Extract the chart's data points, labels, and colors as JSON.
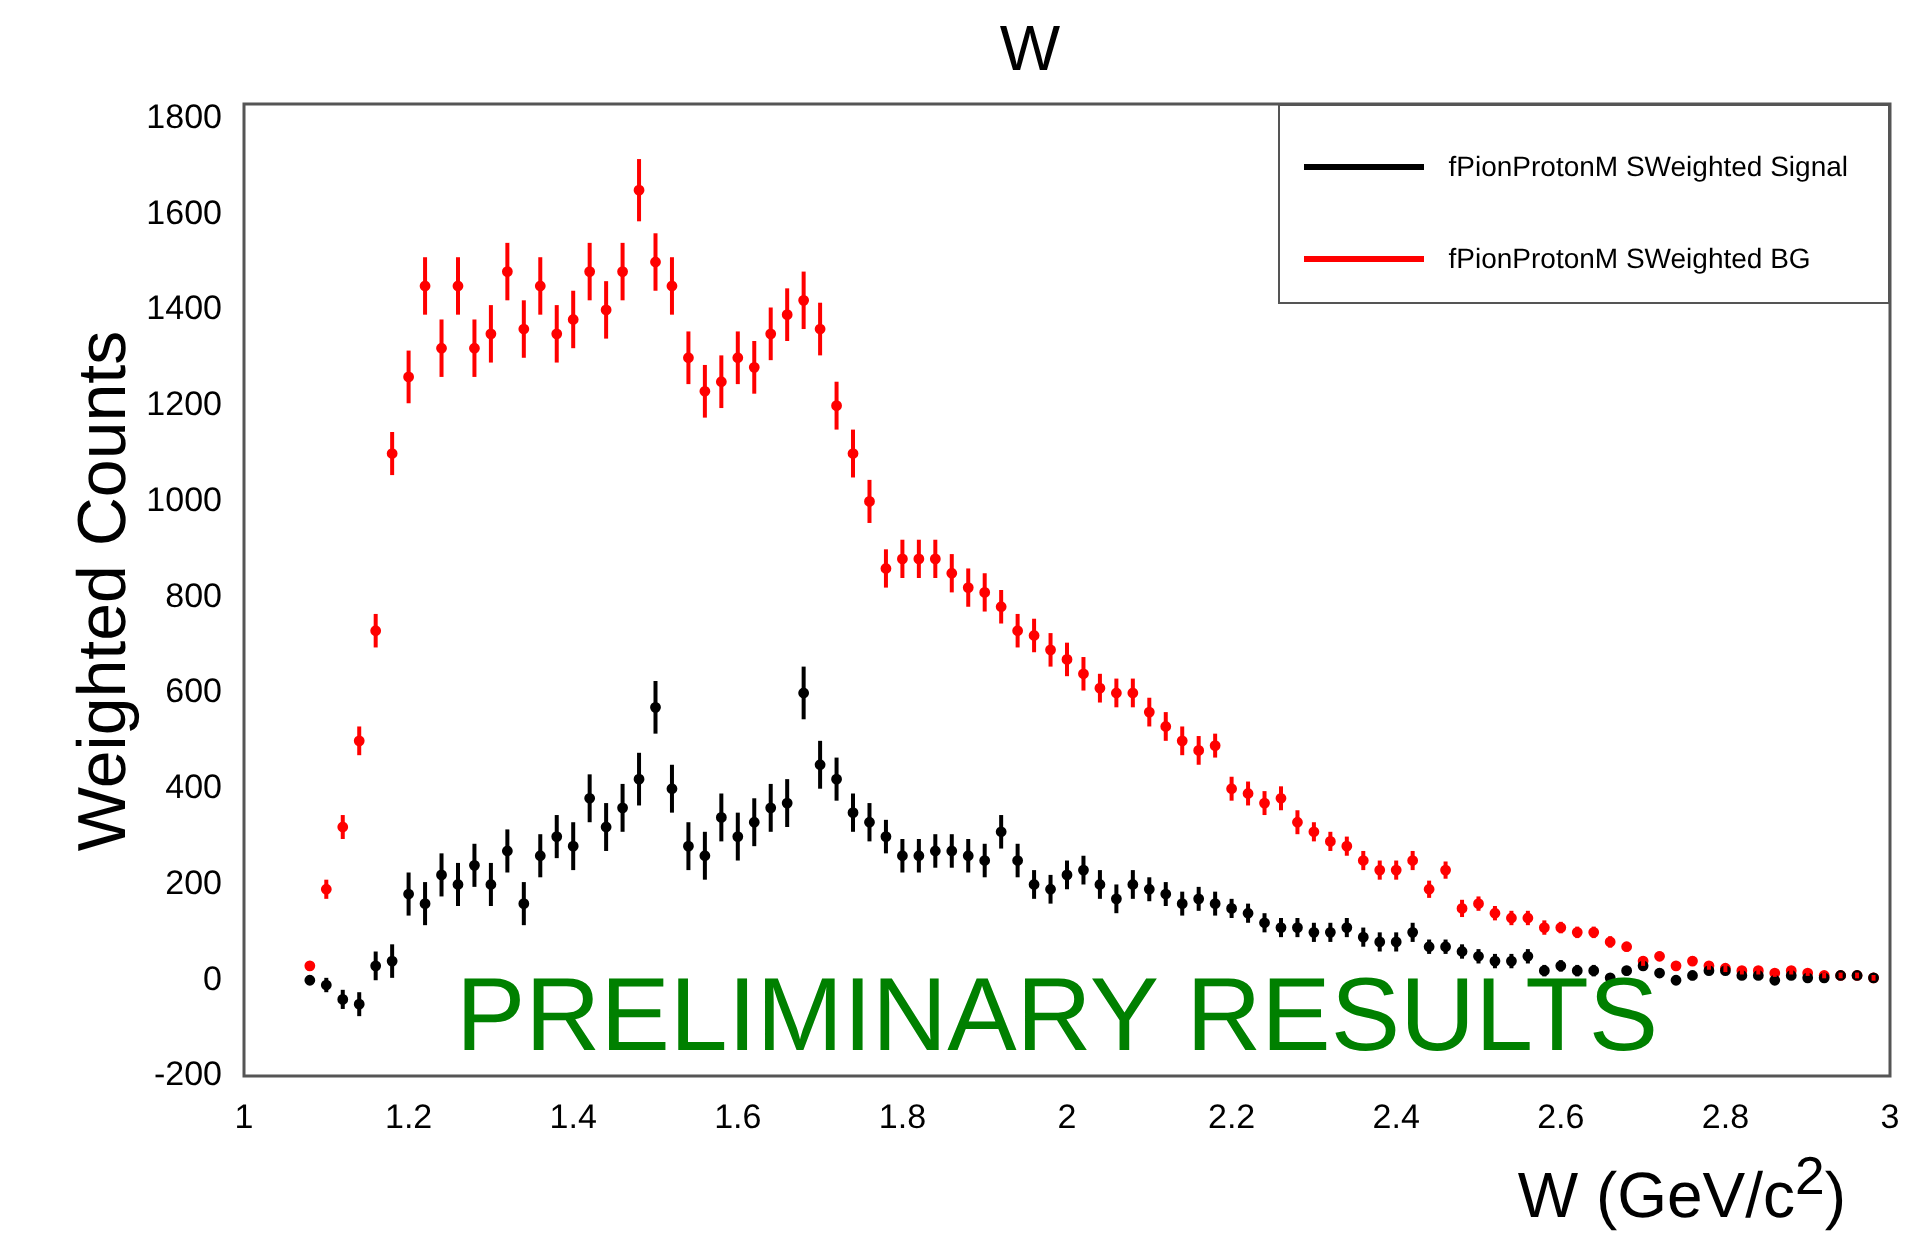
{
  "chart_data": {
    "type": "scatter",
    "title": "W",
    "xlabel": "W (GeV/c$^{2}$)",
    "ylabel": "Weighted Counts",
    "x": [
      1.08,
      1.1,
      1.12,
      1.14,
      1.16,
      1.18,
      1.2,
      1.22,
      1.24,
      1.26,
      1.28,
      1.3,
      1.32,
      1.34,
      1.36,
      1.38,
      1.4,
      1.42,
      1.44,
      1.46,
      1.48,
      1.5,
      1.52,
      1.54,
      1.56,
      1.58,
      1.6,
      1.62,
      1.64,
      1.66,
      1.68,
      1.7,
      1.72,
      1.74,
      1.76,
      1.78,
      1.8,
      1.82,
      1.84,
      1.86,
      1.88,
      1.9,
      1.92,
      1.94,
      1.96,
      1.98,
      2,
      2.02,
      2.04,
      2.06,
      2.08,
      2.1,
      2.12,
      2.14,
      2.16,
      2.18,
      2.2,
      2.22,
      2.24,
      2.26,
      2.28,
      2.3,
      2.32,
      2.34,
      2.36,
      2.38,
      2.4,
      2.42,
      2.44,
      2.46,
      2.48,
      2.5,
      2.52,
      2.54,
      2.56,
      2.58,
      2.6,
      2.62,
      2.64,
      2.66,
      2.68,
      2.7,
      2.72,
      2.74,
      2.76,
      2.78,
      2.8,
      2.82,
      2.84,
      2.86,
      2.88,
      2.9,
      2.92,
      2.94,
      2.96,
      2.98
    ],
    "series": [
      {
        "name": "fPionProtonM SWeighted Signal",
        "color": "#000000",
        "values": [
          0,
          -10,
          -40,
          -50,
          30,
          40,
          180,
          160,
          220,
          200,
          240,
          200,
          270,
          160,
          260,
          300,
          280,
          380,
          320,
          360,
          420,
          570,
          400,
          280,
          260,
          340,
          300,
          330,
          360,
          370,
          600,
          450,
          420,
          350,
          330,
          300,
          260,
          260,
          270,
          270,
          260,
          250,
          310,
          250,
          200,
          190,
          220,
          230,
          200,
          170,
          200,
          190,
          180,
          160,
          170,
          160,
          150,
          140,
          120,
          110,
          110,
          100,
          100,
          110,
          90,
          80,
          80,
          100,
          70,
          70,
          60,
          50,
          40,
          40,
          50,
          20,
          30,
          20,
          20,
          5,
          20,
          30,
          15,
          0,
          10,
          20,
          20,
          10,
          10,
          0,
          10,
          5,
          5,
          10,
          10,
          5
        ],
        "errors": [
          10,
          15,
          20,
          25,
          30,
          35,
          45,
          45,
          45,
          45,
          45,
          45,
          45,
          45,
          45,
          45,
          50,
          50,
          50,
          50,
          55,
          55,
          50,
          50,
          50,
          50,
          50,
          50,
          50,
          50,
          55,
          50,
          45,
          40,
          40,
          35,
          35,
          35,
          35,
          35,
          35,
          35,
          35,
          35,
          30,
          30,
          30,
          30,
          30,
          30,
          30,
          25,
          25,
          25,
          25,
          25,
          20,
          20,
          20,
          20,
          20,
          20,
          20,
          20,
          20,
          20,
          20,
          20,
          15,
          15,
          15,
          15,
          15,
          15,
          15,
          12,
          12,
          12,
          12,
          10,
          10,
          10,
          10,
          10,
          10,
          8,
          8,
          8,
          8,
          8,
          8,
          6,
          6,
          6,
          6,
          6
        ]
      },
      {
        "name": "fPionProtonM SWeighted BG",
        "color": "#ff0000",
        "values": [
          30,
          190,
          320,
          500,
          730,
          1100,
          1260,
          1450,
          1320,
          1450,
          1320,
          1350,
          1480,
          1360,
          1450,
          1350,
          1380,
          1480,
          1400,
          1480,
          1650,
          1500,
          1450,
          1300,
          1230,
          1250,
          1300,
          1280,
          1350,
          1390,
          1420,
          1360,
          1200,
          1100,
          1000,
          860,
          880,
          880,
          880,
          850,
          820,
          810,
          780,
          730,
          720,
          690,
          670,
          640,
          610,
          600,
          600,
          560,
          530,
          500,
          480,
          490,
          400,
          390,
          370,
          380,
          330,
          310,
          290,
          280,
          250,
          230,
          230,
          250,
          190,
          230,
          150,
          160,
          140,
          130,
          130,
          110,
          110,
          100,
          100,
          80,
          70,
          40,
          50,
          30,
          40,
          30,
          25,
          20,
          20,
          15,
          20,
          15,
          10,
          10,
          10,
          5
        ],
        "errors": [
          10,
          20,
          25,
          30,
          35,
          45,
          55,
          60,
          60,
          60,
          60,
          60,
          60,
          60,
          60,
          60,
          60,
          60,
          60,
          60,
          65,
          60,
          60,
          55,
          55,
          55,
          55,
          55,
          55,
          55,
          60,
          55,
          50,
          50,
          45,
          40,
          40,
          40,
          40,
          40,
          40,
          40,
          35,
          35,
          35,
          35,
          35,
          35,
          30,
          30,
          30,
          30,
          30,
          30,
          30,
          25,
          25,
          25,
          25,
          25,
          25,
          20,
          20,
          20,
          20,
          20,
          20,
          20,
          18,
          18,
          18,
          15,
          15,
          15,
          15,
          15,
          12,
          12,
          12,
          12,
          10,
          10,
          10,
          10,
          10,
          8,
          8,
          8,
          8,
          8,
          8,
          6,
          6,
          6,
          6,
          6
        ]
      }
    ],
    "xlim": [
      1,
      3
    ],
    "xticks": [
      1,
      1.2,
      1.4,
      1.6,
      1.8,
      2,
      2.2,
      2.4,
      2.6,
      2.8,
      3
    ],
    "ylim": [
      -200,
      1830
    ],
    "yticks": [
      -200,
      0,
      200,
      400,
      600,
      800,
      1000,
      1200,
      1400,
      1600,
      1800
    ],
    "grid": false,
    "legend": "top right",
    "marker": "circle",
    "annotations": [
      "PRELIMINARY RESULTS"
    ]
  }
}
